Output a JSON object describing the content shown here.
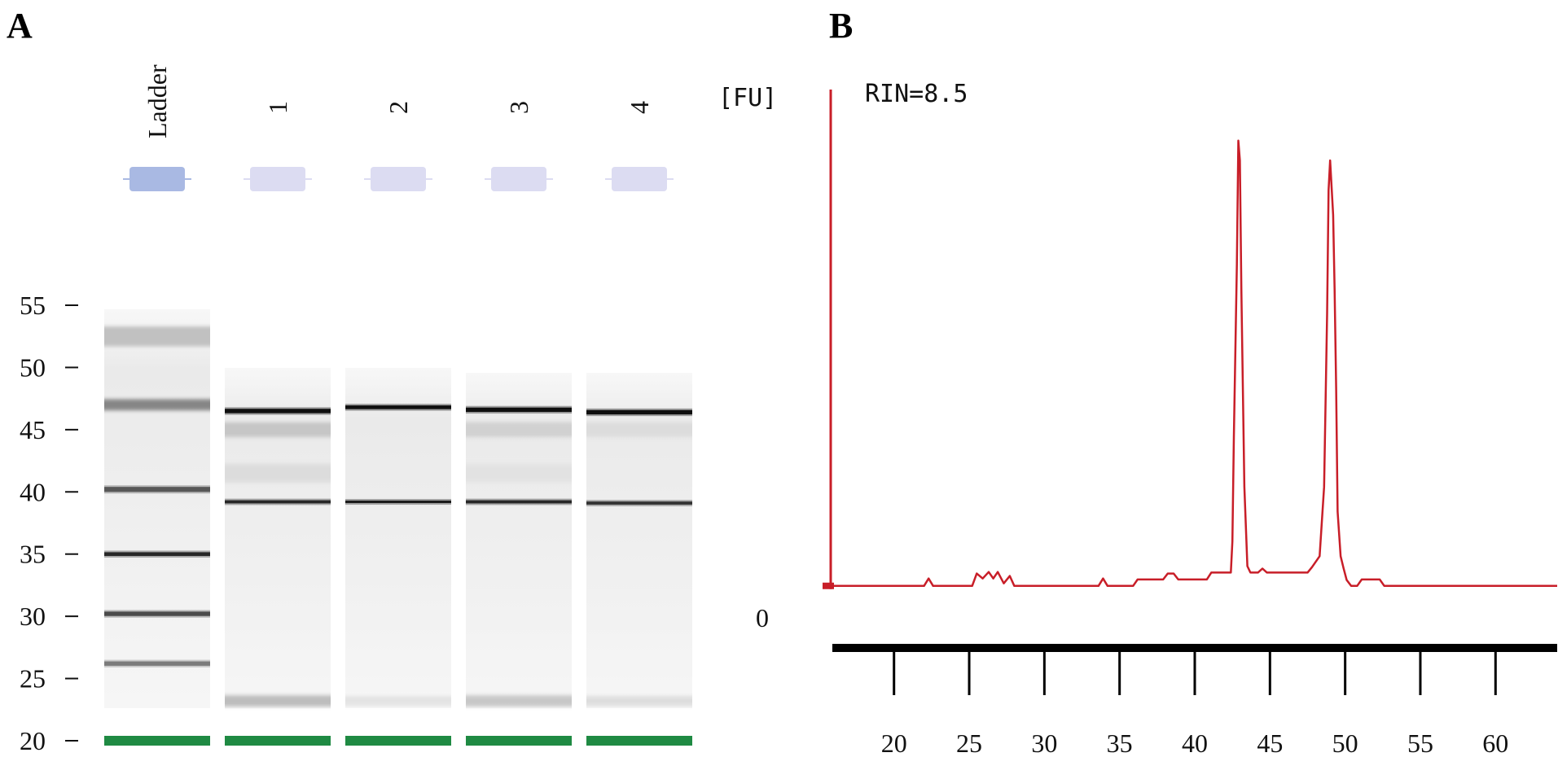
{
  "panels": {
    "a_label": "A",
    "b_label": "B"
  },
  "chart_data": [
    {
      "type": "gel",
      "panel": "A",
      "lanes": [
        "Ladder",
        "1",
        "2",
        "3",
        "4"
      ],
      "y_ticks": [
        "55",
        "50",
        "45",
        "40",
        "35",
        "30",
        "25",
        "20"
      ],
      "ylim": [
        20,
        55
      ],
      "marker_band": 20,
      "colors": {
        "ladder_well": "#a9b9e3",
        "sample_well": "#dcdcf2",
        "marker_band": "#1f8a43",
        "band": "#111111"
      },
      "lane_bands": [
        {
          "lane": "Ladder",
          "bands": [
            {
              "pos": 52.5,
              "intensity": 0.28,
              "width": 1.6
            },
            {
              "pos": 47.0,
              "intensity": 0.55,
              "width": 0.9
            },
            {
              "pos": 40.2,
              "intensity": 0.7,
              "width": 0.4
            },
            {
              "pos": 35.0,
              "intensity": 0.9,
              "width": 0.3
            },
            {
              "pos": 30.2,
              "intensity": 0.75,
              "width": 0.35
            },
            {
              "pos": 26.2,
              "intensity": 0.55,
              "width": 0.35
            }
          ]
        },
        {
          "lane": "1",
          "bands": [
            {
              "pos": 46.5,
              "intensity": 1.0,
              "width": 0.35
            },
            {
              "pos": 45.0,
              "intensity": 0.25,
              "width": 1.2
            },
            {
              "pos": 41.5,
              "intensity": 0.15,
              "width": 1.5
            },
            {
              "pos": 39.2,
              "intensity": 0.9,
              "width": 0.25
            },
            {
              "pos": 23.2,
              "intensity": 0.3,
              "width": 0.9
            }
          ]
        },
        {
          "lane": "2",
          "bands": [
            {
              "pos": 46.8,
              "intensity": 1.0,
              "width": 0.3
            },
            {
              "pos": 39.2,
              "intensity": 0.95,
              "width": 0.2
            },
            {
              "pos": 23.2,
              "intensity": 0.12,
              "width": 0.8
            }
          ]
        },
        {
          "lane": "3",
          "bands": [
            {
              "pos": 46.6,
              "intensity": 1.0,
              "width": 0.35
            },
            {
              "pos": 45.0,
              "intensity": 0.2,
              "width": 1.2
            },
            {
              "pos": 41.5,
              "intensity": 0.12,
              "width": 1.5
            },
            {
              "pos": 39.2,
              "intensity": 0.9,
              "width": 0.25
            },
            {
              "pos": 23.2,
              "intensity": 0.25,
              "width": 0.9
            }
          ]
        },
        {
          "lane": "4",
          "bands": [
            {
              "pos": 46.4,
              "intensity": 1.0,
              "width": 0.35
            },
            {
              "pos": 45.0,
              "intensity": 0.15,
              "width": 1.2
            },
            {
              "pos": 39.1,
              "intensity": 0.85,
              "width": 0.25
            },
            {
              "pos": 23.2,
              "intensity": 0.15,
              "width": 0.8
            }
          ]
        }
      ]
    },
    {
      "type": "line",
      "panel": "B",
      "ylabel": "[FU]",
      "annotation": "RIN=8.5",
      "y_ticks": [
        "0"
      ],
      "x_ticks": [
        20,
        25,
        30,
        35,
        40,
        45,
        50,
        55,
        60
      ],
      "xlim": [
        15.9,
        64.1
      ],
      "ylim": [
        -3,
        100
      ],
      "line_color": "#c81e28",
      "x": [
        15.9,
        22.0,
        22.3,
        22.6,
        25.2,
        25.5,
        25.9,
        26.3,
        26.6,
        26.9,
        27.3,
        27.7,
        28.0,
        28.3,
        33.6,
        33.9,
        34.2,
        35.9,
        36.2,
        37.9,
        38.2,
        38.6,
        38.9,
        40.8,
        41.1,
        42.4,
        42.5,
        42.6,
        42.8,
        42.9,
        43.0,
        43.1,
        43.3,
        43.5,
        43.7,
        44.2,
        44.5,
        44.8,
        47.5,
        47.8,
        48.3,
        48.6,
        48.8,
        48.9,
        49.0,
        49.2,
        49.3,
        49.4,
        49.5,
        49.7,
        49.9,
        50.1,
        50.4,
        50.8,
        51.1,
        52.3,
        52.6,
        64.1
      ],
      "y": [
        0,
        0,
        1.5,
        0,
        0,
        2.5,
        1.5,
        2.8,
        1.5,
        2.8,
        0.5,
        2.0,
        0,
        0,
        0,
        1.5,
        0,
        0,
        1.3,
        1.3,
        2.5,
        2.5,
        1.3,
        1.3,
        2.7,
        2.7,
        9,
        30,
        65,
        90,
        86,
        60,
        20,
        4,
        2.7,
        2.7,
        3.5,
        2.7,
        2.7,
        3.8,
        6,
        20,
        55,
        80,
        86,
        75,
        60,
        40,
        15,
        6,
        3.5,
        1.2,
        0,
        0,
        1.3,
        1.3,
        0,
        0
      ]
    }
  ]
}
